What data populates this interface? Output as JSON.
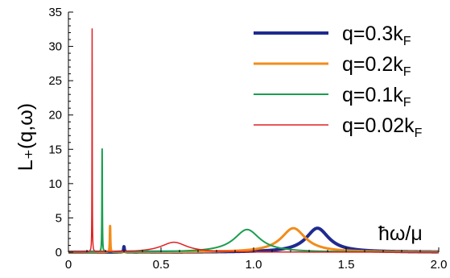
{
  "chart_data": {
    "type": "line",
    "title": "",
    "xlabel": "ħω/μ",
    "ylabel": "L₊(q,ω)",
    "xlim": [
      0,
      2.0
    ],
    "ylim": [
      0,
      35
    ],
    "x_ticks": [
      0,
      0.5,
      1.0,
      1.5,
      2.0
    ],
    "x_tick_labels": [
      "0",
      "0.5",
      "1.0",
      "1.5",
      "2.0"
    ],
    "y_ticks": [
      0,
      5,
      10,
      15,
      20,
      25,
      30,
      35
    ],
    "y_tick_labels": [
      "0",
      "5",
      "10",
      "15",
      "20",
      "25",
      "30",
      "35"
    ],
    "grid": false,
    "legend_position": "top-right",
    "series": [
      {
        "name": "q=0.3k",
        "name_sub": "F",
        "color": "#1f2b8f",
        "stroke_width": 4,
        "peaks": [
          {
            "x": 0.3,
            "height": 0.8,
            "width": 0.0025
          },
          {
            "x": 1.345,
            "height": 3.5,
            "width": 0.075
          }
        ]
      },
      {
        "name": "q=0.2k",
        "name_sub": "F",
        "color": "#f28c1a",
        "stroke_width": 3,
        "peaks": [
          {
            "x": 0.225,
            "height": 3.8,
            "width": 0.0016
          },
          {
            "x": 1.215,
            "height": 3.5,
            "width": 0.08
          }
        ]
      },
      {
        "name": "q=0.1k",
        "name_sub": "F",
        "color": "#1a9e50",
        "stroke_width": 2,
        "peaks": [
          {
            "x": 0.182,
            "height": 15.0,
            "width": 0.0012
          },
          {
            "x": 0.965,
            "height": 3.3,
            "width": 0.085
          }
        ]
      },
      {
        "name": "q=0.02k",
        "name_sub": "F",
        "color": "#e02020",
        "stroke_width": 1.5,
        "peaks": [
          {
            "x": 0.128,
            "height": 32.5,
            "width": 0.0009
          },
          {
            "x": 0.57,
            "height": 1.45,
            "width": 0.085
          }
        ]
      }
    ]
  }
}
